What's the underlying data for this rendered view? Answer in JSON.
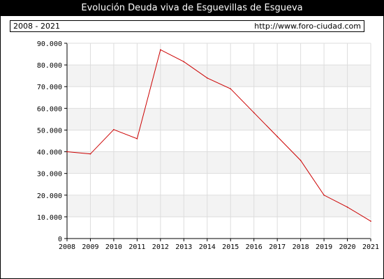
{
  "header": {
    "title": "Evolución Deuda viva de Esguevillas de Esgueva"
  },
  "info": {
    "period": "2008 - 2021",
    "source": "http://www.foro-ciudad.com"
  },
  "colors": {
    "line": "#cc0000",
    "band": "#f3f3f3",
    "grid": "#dddddd"
  },
  "chart_data": {
    "type": "line",
    "title": "Evolución Deuda viva de Esguevillas de Esgueva",
    "xlabel": "",
    "ylabel": "",
    "x": [
      "2008",
      "2009",
      "2010",
      "2011",
      "2012",
      "2013",
      "2014",
      "2015",
      "2016",
      "2017",
      "2018",
      "2019",
      "2020",
      "2021"
    ],
    "series": [
      {
        "values": [
          40000,
          39000,
          50200,
          46000,
          87000,
          81500,
          74000,
          69000,
          58000,
          47000,
          36000,
          20000,
          14500,
          8000
        ]
      }
    ],
    "ylim": [
      0,
      90000
    ],
    "yticks": [
      0,
      10000,
      20000,
      30000,
      40000,
      50000,
      60000,
      70000,
      80000,
      90000
    ],
    "ytick_labels": [
      "0",
      "10.000",
      "20.000",
      "30.000",
      "40.000",
      "50.000",
      "60.000",
      "70.000",
      "80.000",
      "90.000"
    ],
    "grid": true,
    "legend": "none"
  }
}
